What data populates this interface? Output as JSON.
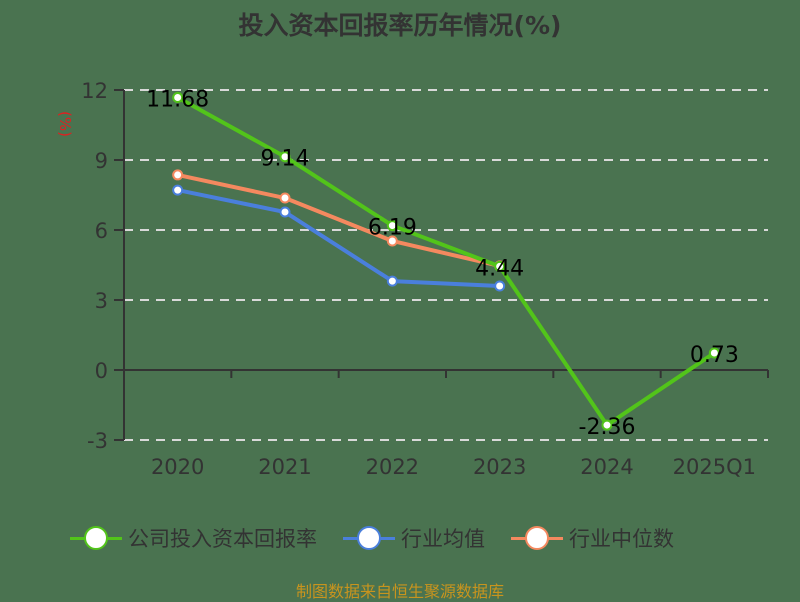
{
  "title": "投入资本回报率历年情况(%)",
  "unit_label": "(%)",
  "source": "制图数据来自恒生聚源数据库",
  "colors": {
    "background": "#4a7350",
    "company": "#52c41a",
    "industry_avg": "#4a7fdc",
    "industry_median": "#f4895f",
    "grid": "#d9d9d9",
    "axis": "#333333"
  },
  "legend": [
    {
      "label": "公司投入资本回报率",
      "color": "#52c41a"
    },
    {
      "label": "行业均值",
      "color": "#4a7fdc"
    },
    {
      "label": "行业中位数",
      "color": "#f4895f"
    }
  ],
  "chart_data": {
    "type": "line",
    "title": "投入资本回报率历年情况(%)",
    "xlabel": "",
    "ylabel": "(%)",
    "categories": [
      "2020",
      "2021",
      "2022",
      "2023",
      "2024",
      "2025Q1"
    ],
    "yticks": [
      12,
      9,
      6,
      3,
      0,
      -3
    ],
    "ylim": [
      -3,
      12
    ],
    "grid": true,
    "legend_position": "bottom",
    "series": [
      {
        "name": "公司投入资本回报率",
        "values": [
          11.68,
          9.14,
          6.19,
          4.44,
          -2.36,
          0.73
        ],
        "labels": [
          "11.68",
          "9.14",
          "6.19",
          "4.44",
          "-2.36",
          "0.73"
        ]
      },
      {
        "name": "行业均值",
        "values": [
          7.71,
          6.77,
          3.81,
          3.6,
          null,
          null
        ]
      },
      {
        "name": "行业中位数",
        "values": [
          8.36,
          7.37,
          5.53,
          4.46,
          null,
          null
        ]
      }
    ]
  }
}
